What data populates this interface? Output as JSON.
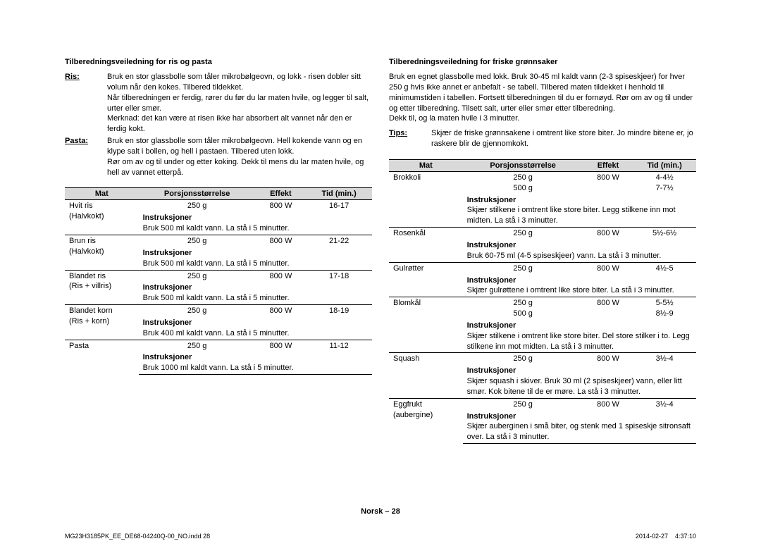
{
  "left": {
    "title": "Tilberedningsveiledning for ris og pasta",
    "defs": [
      {
        "label": "Ris:",
        "underline": true,
        "text": "Bruk en stor glassbolle som tåler mikrobølgeovn, og lokk - risen dobler sitt volum når den kokes. Tilbered tildekket.\nNår tilberedningen er ferdig, rører du før du lar maten hvile, og legger til salt, urter eller smør.\nMerknad: det kan være at risen ikke har absorbert alt vannet når den er ferdig kokt."
      },
      {
        "label": "Pasta:",
        "underline": true,
        "text": "Bruk en stor glassbolle som tåler mikrobølgeovn. Hell kokende vann og en klype salt i bollen, og hell i pastaen. Tilbered uten lokk.\nRør om av og til under og etter koking. Dekk til mens du lar maten hvile, og hell av vannet etterpå."
      }
    ],
    "headers": [
      "Mat",
      "Porsjonsstørrelse",
      "Effekt",
      "Tid (min.)"
    ],
    "instr_label": "Instruksjoner",
    "rows": [
      {
        "food": "Hvit ris\n(Halvkokt)",
        "portion": "250 g",
        "power": "800 W",
        "time": "16-17",
        "instr": "Bruk 500 ml kaldt vann. La stå i 5 minutter."
      },
      {
        "food": "Brun ris\n(Halvkokt)",
        "portion": "250 g",
        "power": "800 W",
        "time": "21-22",
        "instr": "Bruk 500 ml kaldt vann. La stå i 5 minutter."
      },
      {
        "food": "Blandet ris\n(Ris + villris)",
        "portion": "250 g",
        "power": "800 W",
        "time": "17-18",
        "instr": "Bruk 500 ml kaldt vann. La stå i 5 minutter."
      },
      {
        "food": "Blandet korn\n(Ris + korn)",
        "portion": "250 g",
        "power": "800 W",
        "time": "18-19",
        "instr": "Bruk 400 ml kaldt vann. La stå i 5 minutter."
      },
      {
        "food": "Pasta",
        "portion": "250 g",
        "power": "800 W",
        "time": "11-12",
        "instr": "Bruk 1000 ml kaldt vann. La stå i 5 minutter."
      }
    ]
  },
  "right": {
    "title": "Tilberedningsveiledning for friske grønnsaker",
    "intro": "Bruk en egnet glassbolle med lokk. Bruk 30-45 ml kaldt vann (2-3 spiseskjeer) for hver 250 g hvis ikke annet er anbefalt - se tabell. Tilbered maten tildekket i henhold til minimumstiden i tabellen. Fortsett tilberedningen til du er fornøyd. Rør om av og til under og etter tilberedning. Tilsett salt, urter eller smør etter tilberedning.\nDekk til, og la maten hvile i 3 minutter.",
    "tips_label": "Tips:",
    "tips": "Skjær de friske grønnsakene i omtrent like store biter. Jo mindre bitene er, jo raskere blir de gjennomkokt.",
    "headers": [
      "Mat",
      "Porsjonsstørrelse",
      "Effekt",
      "Tid (min.)"
    ],
    "instr_label": "Instruksjoner",
    "rows": [
      {
        "food": "Brokkoli",
        "portion": "250 g\n500 g",
        "power": "800 W",
        "time": "4-4½\n7-7½",
        "instr": "Skjær stilkene i omtrent like store biter. Legg stilkene inn mot midten. La stå i 3 minutter."
      },
      {
        "food": "Rosenkål",
        "portion": "250 g",
        "power": "800 W",
        "time": "5½-6½",
        "instr": "Bruk 60-75 ml (4-5 spiseskjeer) vann. La stå i 3 minutter."
      },
      {
        "food": "Gulrøtter",
        "portion": "250 g",
        "power": "800 W",
        "time": "4½-5",
        "instr": "Skjær gulrøttene i omtrent like store biter. La stå i 3 minutter."
      },
      {
        "food": "Blomkål",
        "portion": "250 g\n500 g",
        "power": "800 W",
        "time": "5-5½\n8½-9",
        "instr": "Skjær stilkene i omtrent like store biter. Del store stilker i to. Legg stilkene inn mot midten. La stå i 3 minutter."
      },
      {
        "food": "Squash",
        "portion": "250 g",
        "power": "800 W",
        "time": "3½-4",
        "instr": "Skjær squash i skiver. Bruk 30 ml (2 spiseskjeer) vann, eller litt smør. Kok bitene til de er møre. La stå i 3 minutter."
      },
      {
        "food": "Eggfrukt\n(aubergine)",
        "portion": "250 g",
        "power": "800 W",
        "time": "3½-4",
        "instr": "Skjær auberginen i små biter, og stenk med 1 spiseskje sitronsaft over. La stå i 3 minutter."
      }
    ]
  },
  "footer": "Norsk – 28",
  "print_left": "MG23H3185PK_EE_DE68-04240Q-00_NO.indd   28",
  "print_right": "2014-02-27     4:37:10"
}
